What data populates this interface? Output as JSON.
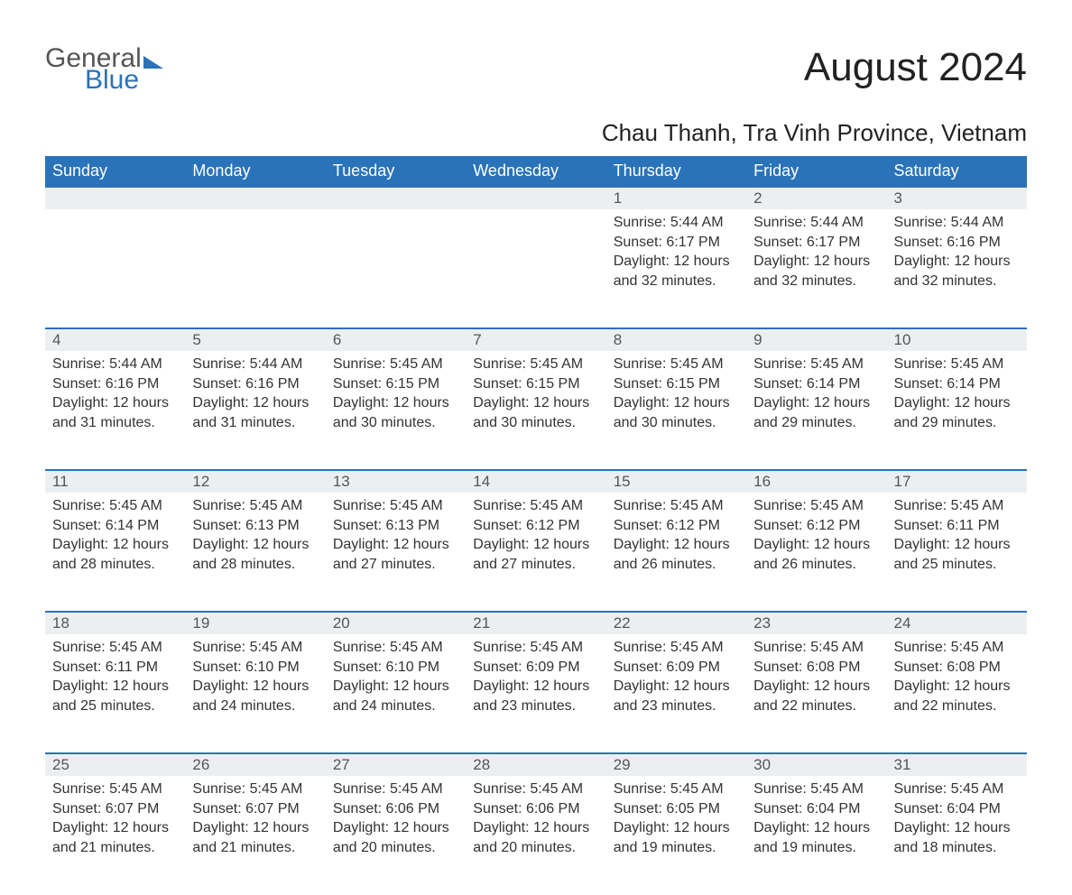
{
  "logo": {
    "word1": "General",
    "word2": "Blue"
  },
  "title": "August 2024",
  "location": "Chau Thanh, Tra Vinh Province, Vietnam",
  "colors": {
    "header_bg": "#2a73b8",
    "header_text": "#ffffff",
    "daynum_bg": "#eceff1",
    "border_top": "#2a73b8",
    "body_text": "#333333",
    "title_text": "#222222",
    "logo_gray": "#555555",
    "logo_blue": "#2a73b8",
    "page_bg": "#ffffff"
  },
  "typography": {
    "title_fontsize": 44,
    "location_fontsize": 26,
    "dayheader_fontsize": 18,
    "daynum_fontsize": 17,
    "cell_fontsize": 16,
    "logo_fontsize": 30
  },
  "calendar": {
    "type": "table",
    "columns": [
      "Sunday",
      "Monday",
      "Tuesday",
      "Wednesday",
      "Thursday",
      "Friday",
      "Saturday"
    ],
    "weeks": [
      [
        null,
        null,
        null,
        null,
        {
          "day": "1",
          "sunrise": "5:44 AM",
          "sunset": "6:17 PM",
          "daylight": "12 hours and 32 minutes."
        },
        {
          "day": "2",
          "sunrise": "5:44 AM",
          "sunset": "6:17 PM",
          "daylight": "12 hours and 32 minutes."
        },
        {
          "day": "3",
          "sunrise": "5:44 AM",
          "sunset": "6:16 PM",
          "daylight": "12 hours and 32 minutes."
        }
      ],
      [
        {
          "day": "4",
          "sunrise": "5:44 AM",
          "sunset": "6:16 PM",
          "daylight": "12 hours and 31 minutes."
        },
        {
          "day": "5",
          "sunrise": "5:44 AM",
          "sunset": "6:16 PM",
          "daylight": "12 hours and 31 minutes."
        },
        {
          "day": "6",
          "sunrise": "5:45 AM",
          "sunset": "6:15 PM",
          "daylight": "12 hours and 30 minutes."
        },
        {
          "day": "7",
          "sunrise": "5:45 AM",
          "sunset": "6:15 PM",
          "daylight": "12 hours and 30 minutes."
        },
        {
          "day": "8",
          "sunrise": "5:45 AM",
          "sunset": "6:15 PM",
          "daylight": "12 hours and 30 minutes."
        },
        {
          "day": "9",
          "sunrise": "5:45 AM",
          "sunset": "6:14 PM",
          "daylight": "12 hours and 29 minutes."
        },
        {
          "day": "10",
          "sunrise": "5:45 AM",
          "sunset": "6:14 PM",
          "daylight": "12 hours and 29 minutes."
        }
      ],
      [
        {
          "day": "11",
          "sunrise": "5:45 AM",
          "sunset": "6:14 PM",
          "daylight": "12 hours and 28 minutes."
        },
        {
          "day": "12",
          "sunrise": "5:45 AM",
          "sunset": "6:13 PM",
          "daylight": "12 hours and 28 minutes."
        },
        {
          "day": "13",
          "sunrise": "5:45 AM",
          "sunset": "6:13 PM",
          "daylight": "12 hours and 27 minutes."
        },
        {
          "day": "14",
          "sunrise": "5:45 AM",
          "sunset": "6:12 PM",
          "daylight": "12 hours and 27 minutes."
        },
        {
          "day": "15",
          "sunrise": "5:45 AM",
          "sunset": "6:12 PM",
          "daylight": "12 hours and 26 minutes."
        },
        {
          "day": "16",
          "sunrise": "5:45 AM",
          "sunset": "6:12 PM",
          "daylight": "12 hours and 26 minutes."
        },
        {
          "day": "17",
          "sunrise": "5:45 AM",
          "sunset": "6:11 PM",
          "daylight": "12 hours and 25 minutes."
        }
      ],
      [
        {
          "day": "18",
          "sunrise": "5:45 AM",
          "sunset": "6:11 PM",
          "daylight": "12 hours and 25 minutes."
        },
        {
          "day": "19",
          "sunrise": "5:45 AM",
          "sunset": "6:10 PM",
          "daylight": "12 hours and 24 minutes."
        },
        {
          "day": "20",
          "sunrise": "5:45 AM",
          "sunset": "6:10 PM",
          "daylight": "12 hours and 24 minutes."
        },
        {
          "day": "21",
          "sunrise": "5:45 AM",
          "sunset": "6:09 PM",
          "daylight": "12 hours and 23 minutes."
        },
        {
          "day": "22",
          "sunrise": "5:45 AM",
          "sunset": "6:09 PM",
          "daylight": "12 hours and 23 minutes."
        },
        {
          "day": "23",
          "sunrise": "5:45 AM",
          "sunset": "6:08 PM",
          "daylight": "12 hours and 22 minutes."
        },
        {
          "day": "24",
          "sunrise": "5:45 AM",
          "sunset": "6:08 PM",
          "daylight": "12 hours and 22 minutes."
        }
      ],
      [
        {
          "day": "25",
          "sunrise": "5:45 AM",
          "sunset": "6:07 PM",
          "daylight": "12 hours and 21 minutes."
        },
        {
          "day": "26",
          "sunrise": "5:45 AM",
          "sunset": "6:07 PM",
          "daylight": "12 hours and 21 minutes."
        },
        {
          "day": "27",
          "sunrise": "5:45 AM",
          "sunset": "6:06 PM",
          "daylight": "12 hours and 20 minutes."
        },
        {
          "day": "28",
          "sunrise": "5:45 AM",
          "sunset": "6:06 PM",
          "daylight": "12 hours and 20 minutes."
        },
        {
          "day": "29",
          "sunrise": "5:45 AM",
          "sunset": "6:05 PM",
          "daylight": "12 hours and 19 minutes."
        },
        {
          "day": "30",
          "sunrise": "5:45 AM",
          "sunset": "6:04 PM",
          "daylight": "12 hours and 19 minutes."
        },
        {
          "day": "31",
          "sunrise": "5:45 AM",
          "sunset": "6:04 PM",
          "daylight": "12 hours and 18 minutes."
        }
      ]
    ],
    "labels": {
      "sunrise": "Sunrise: ",
      "sunset": "Sunset: ",
      "daylight": "Daylight: "
    }
  }
}
